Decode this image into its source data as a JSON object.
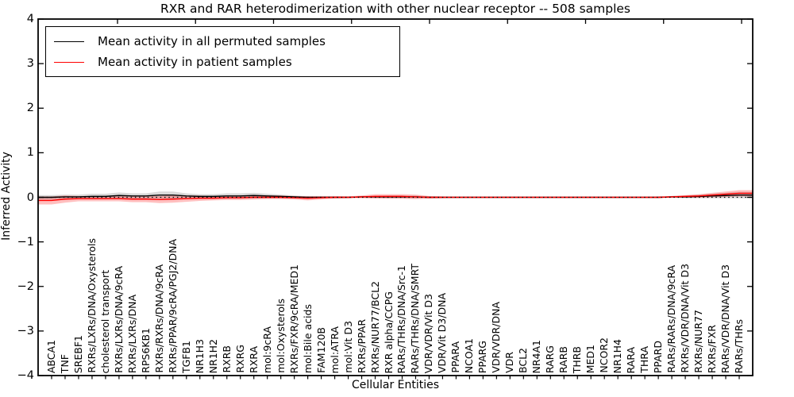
{
  "figure": {
    "title": "RXR and RAR heterodimerization with other nuclear receptor -- 508 samples",
    "xlabel": "Cellular Entities",
    "ylabel": "Inferred Activity"
  },
  "legend": {
    "items": [
      {
        "label": "Mean activity in all permuted samples",
        "color": "#000000"
      },
      {
        "label": "Mean activity in patient samples",
        "color": "#ff0000"
      }
    ]
  },
  "axes": {
    "yticks": [
      {
        "label": "4",
        "value": 4
      },
      {
        "label": "3",
        "value": 3
      },
      {
        "label": "2",
        "value": 2
      },
      {
        "label": "1",
        "value": 1
      },
      {
        "label": "0",
        "value": 0
      },
      {
        "label": "−1",
        "value": -1
      },
      {
        "label": "−2",
        "value": -2
      },
      {
        "label": "−3",
        "value": -3
      },
      {
        "label": "−4",
        "value": -4
      }
    ]
  },
  "chart_data": {
    "type": "line",
    "title": "RXR and RAR heterodimerization with other nuclear receptor -- 508 samples",
    "xlabel": "Cellular Entities",
    "ylabel": "Inferred Activity",
    "ylim": [
      -4,
      4
    ],
    "zero_line": "dotted",
    "legend_position": "upper left",
    "categories": [
      "ABCA1",
      "TNF",
      "SREBF1",
      "RXRs/LXRs/DNA/Oxysterols",
      "cholesterol transport",
      "RXRs/LXRs/DNA/9cRA",
      "RXRs/LXRs/DNA",
      "RPS6KB1",
      "RXRs/RXRs/DNA/9cRA",
      "RXRs/PPAR/9cRA/PGJ2/DNA",
      "TGFB1",
      "NR1H3",
      "NR1H2",
      "RXRB",
      "RXRG",
      "RXRA",
      "mol:9cRA",
      "mol:Oxysterols",
      "RXRs/FXR/9cRA/MED1",
      "mol:Bile acids",
      "FAM120B",
      "mol:ATRA",
      "mol:Vit D3",
      "RXRs/PPAR",
      "RXRs/NUR77/BCL2",
      "RXR alpha/CCPG",
      "RARs/THRs/DNA/Src-1",
      "RARs/THRs/DNA/SMRT",
      "VDR/VDR/Vit D3",
      "VDR/Vit D3/DNA",
      "PPARA",
      "NCOA1",
      "PPARG",
      "VDR/VDR/DNA",
      "VDR",
      "BCL2",
      "NR4A1",
      "RARG",
      "RARB",
      "THRB",
      "MED1",
      "NCOR2",
      "NR1H4",
      "RARA",
      "THRA",
      "PPARD",
      "RARs/RARs/DNA/9cRA",
      "RXRs/VDR/DNA/Vit D3",
      "RXRs/NUR77",
      "RXRs/FXR",
      "RARs/VDR/DNA/Vit D3",
      "RARs/THRs"
    ],
    "series": [
      {
        "name": "Mean activity in all permuted samples",
        "color": "#000000",
        "band_color": "rgba(0,0,0,0.15)",
        "values": [
          0.0,
          0.01,
          0.01,
          0.02,
          0.02,
          0.04,
          0.03,
          0.03,
          0.05,
          0.05,
          0.03,
          0.02,
          0.02,
          0.03,
          0.03,
          0.04,
          0.03,
          0.02,
          0.01,
          0.0,
          0.0,
          0.0,
          0.0,
          0.01,
          0.01,
          0.01,
          0.01,
          0.01,
          0.0,
          0.0,
          0.0,
          0.0,
          0.0,
          0.0,
          0.0,
          0.0,
          0.0,
          0.0,
          0.0,
          0.0,
          0.0,
          0.0,
          0.0,
          0.0,
          0.0,
          0.0,
          0.01,
          0.01,
          0.02,
          0.03,
          0.04,
          0.05
        ],
        "band_halfwidth": [
          0.05,
          0.05,
          0.05,
          0.06,
          0.06,
          0.07,
          0.06,
          0.06,
          0.08,
          0.08,
          0.06,
          0.05,
          0.05,
          0.06,
          0.06,
          0.06,
          0.05,
          0.04,
          0.03,
          0.02,
          0.02,
          0.01,
          0.01,
          0.02,
          0.02,
          0.03,
          0.03,
          0.03,
          0.02,
          0.01,
          0.01,
          0.01,
          0.01,
          0.01,
          0.01,
          0.01,
          0.01,
          0.01,
          0.01,
          0.01,
          0.01,
          0.01,
          0.01,
          0.01,
          0.01,
          0.01,
          0.02,
          0.03,
          0.04,
          0.05,
          0.06,
          0.07
        ]
      },
      {
        "name": "Mean activity in patient samples",
        "color": "#ff0000",
        "band_color": "rgba(255,0,0,0.25)",
        "values": [
          -0.07,
          -0.04,
          -0.03,
          -0.03,
          -0.03,
          -0.03,
          -0.04,
          -0.04,
          -0.05,
          -0.04,
          -0.03,
          -0.02,
          -0.02,
          -0.01,
          -0.01,
          0.0,
          0.0,
          0.0,
          -0.01,
          -0.02,
          -0.01,
          0.0,
          0.0,
          0.01,
          0.02,
          0.02,
          0.02,
          0.01,
          0.0,
          0.0,
          0.0,
          0.0,
          0.0,
          0.0,
          0.0,
          0.0,
          0.0,
          0.0,
          0.0,
          0.0,
          0.0,
          0.0,
          0.0,
          0.0,
          0.0,
          0.0,
          0.01,
          0.02,
          0.03,
          0.05,
          0.07,
          0.09
        ],
        "band_halfwidth": [
          0.09,
          0.08,
          0.06,
          0.06,
          0.06,
          0.06,
          0.07,
          0.07,
          0.08,
          0.08,
          0.07,
          0.06,
          0.05,
          0.05,
          0.05,
          0.05,
          0.04,
          0.04,
          0.04,
          0.05,
          0.04,
          0.03,
          0.02,
          0.03,
          0.05,
          0.05,
          0.05,
          0.05,
          0.03,
          0.02,
          0.01,
          0.01,
          0.01,
          0.01,
          0.01,
          0.01,
          0.01,
          0.01,
          0.01,
          0.01,
          0.01,
          0.01,
          0.01,
          0.01,
          0.01,
          0.02,
          0.02,
          0.03,
          0.04,
          0.05,
          0.06,
          0.07
        ]
      }
    ]
  }
}
